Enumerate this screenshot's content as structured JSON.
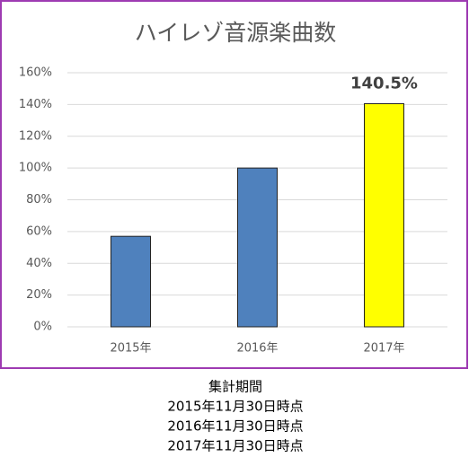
{
  "chart_data": {
    "type": "bar",
    "title": "ハイレゾ音源楽曲数",
    "categories": [
      "2015年",
      "2016年",
      "2017年"
    ],
    "values": [
      57,
      100,
      140.5
    ],
    "value_labels": [
      null,
      null,
      "140.5%"
    ],
    "colors": [
      "#4f81bd",
      "#4f81bd",
      "#ffff00"
    ],
    "ylim": [
      0,
      160
    ],
    "yticks": [
      {
        "value": 0,
        "label": "0%"
      },
      {
        "value": 20,
        "label": "20%"
      },
      {
        "value": 40,
        "label": "40%"
      },
      {
        "value": 60,
        "label": "60%"
      },
      {
        "value": 80,
        "label": "80%"
      },
      {
        "value": 100,
        "label": "100%"
      },
      {
        "value": 120,
        "label": "120%"
      },
      {
        "value": 140,
        "label": "140%"
      },
      {
        "value": 160,
        "label": "160%"
      }
    ],
    "grid": true,
    "footnote": [
      "集計期間",
      "2015年11月30日時点",
      "2016年11月30日時点",
      "2017年11月30日時点"
    ]
  }
}
